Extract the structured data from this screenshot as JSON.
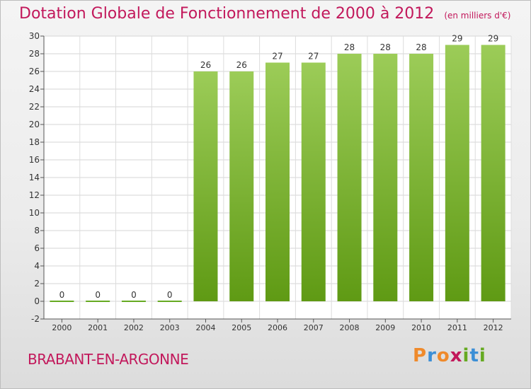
{
  "title": "Dotation Globale de Fonctionnement de 2000 à 2012",
  "unit": "(en milliers d'€)",
  "commune": "BRABANT-EN-ARGONNE",
  "logo": {
    "p": "P",
    "r": "r",
    "o": "o",
    "x": "x",
    "i1": "i",
    "t": "t",
    "i2": "i"
  },
  "colors": {
    "title": "#c2185b",
    "bar_top": "#9ccc58",
    "bar_bottom": "#5f9a14",
    "zero_line": "#66aa22"
  },
  "chart_data": {
    "type": "bar",
    "title": "Dotation Globale de Fonctionnement de 2000 à 2012",
    "subtitle": "(en milliers d'€)",
    "categories": [
      "2000",
      "2001",
      "2002",
      "2003",
      "2004",
      "2005",
      "2006",
      "2007",
      "2008",
      "2009",
      "2010",
      "2011",
      "2012"
    ],
    "values": [
      0,
      0,
      0,
      0,
      26,
      26,
      27,
      27,
      28,
      28,
      28,
      29,
      29
    ],
    "ylim": [
      -2,
      30
    ],
    "yticks": [
      -2,
      0,
      2,
      4,
      6,
      8,
      10,
      12,
      14,
      16,
      18,
      20,
      22,
      24,
      26,
      28,
      30
    ],
    "grid": true,
    "data_labels": true
  }
}
